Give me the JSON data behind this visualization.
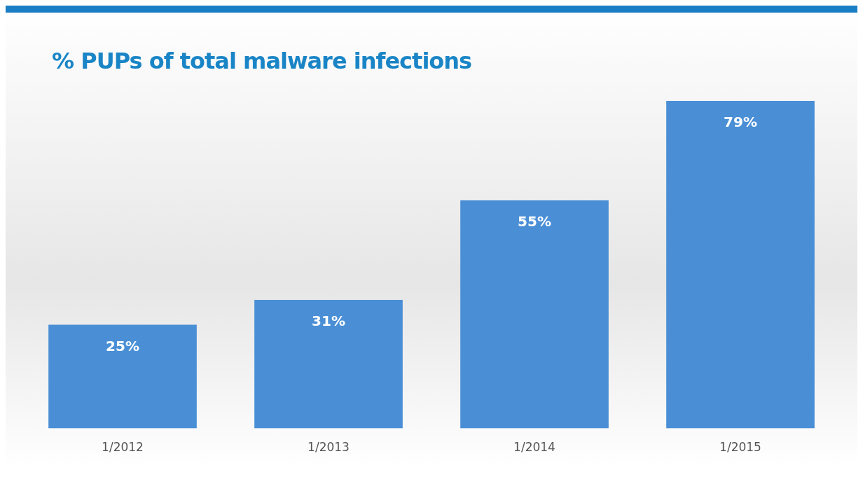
{
  "chart_data": {
    "type": "bar",
    "title": "% PUPs of total malware infections",
    "categories": [
      "1/2012",
      "1/2013",
      "1/2014",
      "1/2015"
    ],
    "values": [
      25,
      31,
      55,
      79
    ],
    "value_labels": [
      "25%",
      "31%",
      "55%",
      "79%"
    ],
    "color": "#4a8fd6",
    "grid": false,
    "legend": false
  }
}
